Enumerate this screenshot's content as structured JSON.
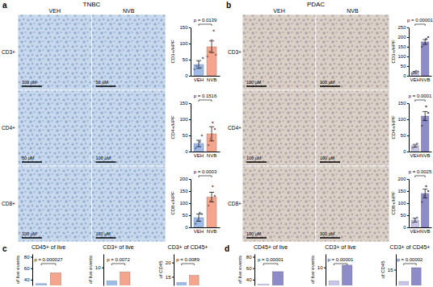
{
  "figure": {
    "panel_labels": [
      "a",
      "b",
      "c",
      "d"
    ],
    "image_panels": [
      {
        "title": "TNBC",
        "columns": [
          "VEH",
          "NVB"
        ],
        "rows": [
          "CD3+",
          "CD4+",
          "CD8+"
        ],
        "scale_bars": [
          [
            "100 µM",
            "50 µM"
          ],
          [
            "50 µM",
            "100 µM"
          ],
          [
            "100 µM",
            "100 µM"
          ]
        ]
      },
      {
        "title": "PDAC",
        "columns": [
          "VEH",
          "NVB"
        ],
        "rows": [
          "CD3+",
          "CD4+",
          "CD8+"
        ],
        "scale_bars": [
          [
            "100 µM",
            "100 µM"
          ],
          [
            "100 µM",
            "100 µM"
          ],
          [
            "100 µM",
            "100 µM"
          ]
        ]
      }
    ]
  },
  "chart_data": [
    {
      "type": "bar",
      "ylabel": "CD3+/HPF",
      "annotation": "p = 0.0139",
      "categories": [
        "VEH",
        "NVB"
      ],
      "values": [
        35,
        90
      ],
      "errors": [
        12,
        18
      ],
      "points": [
        [
          20,
          30,
          45,
          25,
          55
        ],
        [
          60,
          75,
          110,
          140,
          65
        ]
      ],
      "colors": [
        "#9fbbe8",
        "#f4a58e"
      ],
      "ylim": [
        0,
        150
      ],
      "yticks": [
        0,
        50,
        100,
        150
      ]
    },
    {
      "type": "bar",
      "ylabel": "CD4+/HPF",
      "annotation": "p = 0.1516",
      "categories": [
        "VEH",
        "NVB"
      ],
      "values": [
        25,
        55
      ],
      "errors": [
        10,
        22
      ],
      "points": [
        [
          10,
          15,
          30,
          50
        ],
        [
          20,
          40,
          90,
          70
        ]
      ],
      "colors": [
        "#9fbbe8",
        "#f4a58e"
      ],
      "ylim": [
        0,
        150
      ],
      "yticks": [
        0,
        50,
        100,
        150
      ]
    },
    {
      "type": "bar",
      "ylabel": "CD8+/HPF",
      "annotation": "p = 0.0003",
      "categories": [
        "VEH",
        "NVB"
      ],
      "values": [
        40,
        125
      ],
      "errors": [
        15,
        20
      ],
      "points": [
        [
          15,
          30,
          60,
          55
        ],
        [
          90,
          110,
          170,
          130
        ]
      ],
      "colors": [
        "#9fbbe8",
        "#f4a58e"
      ],
      "ylim": [
        0,
        200
      ],
      "yticks": [
        0,
        50,
        100,
        150,
        200
      ]
    },
    {
      "type": "bar",
      "ylabel": "CD3+/HPF",
      "annotation": "p = 0.00001",
      "categories": [
        "VEH",
        "NVB"
      ],
      "values": [
        18,
        175
      ],
      "errors": [
        5,
        12
      ],
      "points": [
        [
          10,
          15,
          25,
          22
        ],
        [
          150,
          160,
          190,
          200
        ]
      ],
      "colors": [
        "#c8c6e8",
        "#8e8cc8"
      ],
      "ylim": [
        0,
        250
      ],
      "yticks": [
        0,
        50,
        100,
        150,
        200,
        250
      ]
    },
    {
      "type": "bar",
      "ylabel": "CD4+/HPF",
      "annotation": "p = 0.0001",
      "categories": [
        "VEH",
        "NVB"
      ],
      "values": [
        18,
        110
      ],
      "errors": [
        4,
        14
      ],
      "points": [
        [
          12,
          20,
          24
        ],
        [
          80,
          100,
          140,
          120
        ]
      ],
      "colors": [
        "#c8c6e8",
        "#8e8cc8"
      ],
      "ylim": [
        0,
        150
      ],
      "yticks": [
        0,
        50,
        100,
        150
      ]
    },
    {
      "type": "bar",
      "ylabel": "CD8+/HPF",
      "annotation": "p = 0.0025",
      "categories": [
        "VEH",
        "NVB"
      ],
      "values": [
        30,
        140
      ],
      "errors": [
        8,
        18
      ],
      "points": [
        [
          20,
          35,
          40
        ],
        [
          105,
          130,
          170,
          150
        ]
      ],
      "colors": [
        "#c8c6e8",
        "#8e8cc8"
      ],
      "ylim": [
        0,
        200
      ],
      "yticks": [
        0,
        50,
        100,
        150,
        200
      ]
    },
    {
      "type": "bar",
      "title": "CD45+ of live",
      "ylabel": "of live events",
      "annotation": "p = 0.000027",
      "categories": [
        null,
        null
      ],
      "values": [
        33,
        52
      ],
      "colors": [
        "#9fbbe8",
        "#f4a58e"
      ],
      "ylim": [
        30,
        85
      ],
      "yticks": [
        40,
        60,
        80
      ]
    },
    {
      "type": "bar",
      "title": "CD3+ of live",
      "ylabel": "of live events",
      "annotation": "p = 0.0072",
      "categories": [
        null,
        null
      ],
      "values": [
        7,
        9
      ],
      "colors": [
        "#9fbbe8",
        "#f4a58e"
      ],
      "ylim": [
        6,
        13
      ],
      "yticks": [
        10
      ]
    },
    {
      "type": "bar",
      "title": "CD3+ of CD45+",
      "ylabel": "of CD45",
      "annotation": "p = 0.0089",
      "categories": [
        null,
        null
      ],
      "values": [
        13,
        15.5
      ],
      "colors": [
        "#9fbbe8",
        "#f4a58e"
      ],
      "ylim": [
        12,
        23
      ],
      "yticks": [
        15,
        20
      ]
    },
    {
      "type": "bar",
      "title": "CD45+ of live",
      "ylabel": "of live events",
      "annotation": "p = 0.00001",
      "categories": [
        null,
        null
      ],
      "values": [
        32,
        54
      ],
      "colors": [
        "#c8c6e8",
        "#8e8cc8"
      ],
      "ylim": [
        30,
        85
      ],
      "yticks": [
        40,
        60,
        80
      ]
    },
    {
      "type": "bar",
      "title": "CD3+ of live",
      "ylabel": "of live events",
      "annotation": "p = 0.00001",
      "categories": [
        null,
        null
      ],
      "values": [
        7,
        10.5
      ],
      "colors": [
        "#c8c6e8",
        "#8e8cc8"
      ],
      "ylim": [
        6,
        13
      ],
      "yticks": [
        10
      ]
    },
    {
      "type": "bar",
      "title": "CD3+ of CD45+",
      "ylabel": "of CD45",
      "annotation": "p = 0.00002",
      "categories": [
        null,
        null
      ],
      "values": [
        12,
        15.5
      ],
      "colors": [
        "#c8c6e8",
        "#8e8cc8"
      ],
      "ylim": [
        11,
        19
      ],
      "yticks": [
        15
      ]
    }
  ]
}
